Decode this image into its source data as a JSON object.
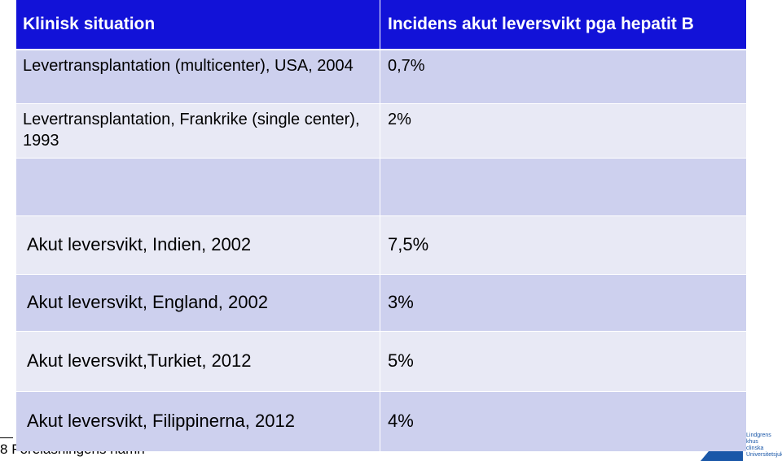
{
  "table": {
    "header": [
      "Klinisk situation",
      "Incidens akut leversvikt pga hepatit B"
    ],
    "rows": [
      [
        "Levertransplantation (multicenter), USA, 2004",
        "0,7%"
      ],
      [
        "Levertransplantation, Frankrike (single center), 1993",
        "2%"
      ],
      [
        "Akut leversvikt, Indien, 2002",
        "7,5%"
      ],
      [
        "Akut leversvikt, England, 2002",
        "3%"
      ],
      [
        "Akut leversvikt,Turkiet, 2012",
        "5%"
      ],
      [
        "Akut leversvikt, Filippinerna, 2012",
        "4%"
      ]
    ]
  },
  "footer": {
    "slide_number": "8",
    "text": "Föreläsningens namn"
  },
  "logo": {
    "lines": [
      "Lindgrens",
      "khus",
      "clinska",
      "Universitetsjukhuset"
    ]
  }
}
